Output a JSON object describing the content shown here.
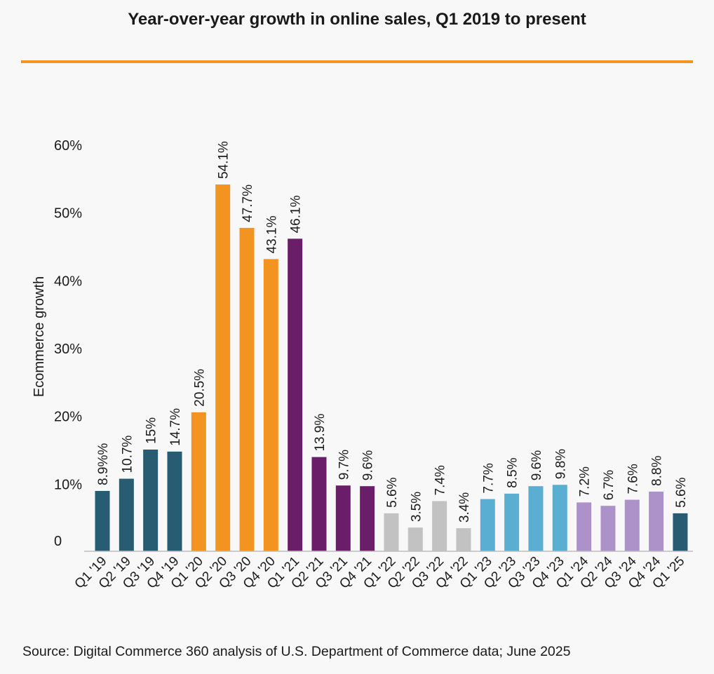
{
  "title": "Year-over-year growth in online sales, Q1 2019 to present",
  "source": "Source: Digital Commerce 360 analysis of U.S. Department of Commerce data; June 2025",
  "colors": {
    "rule": "#f39420",
    "navy": "#275c72",
    "orange": "#f39420",
    "purple": "#6a1e6a",
    "gray": "#c2c2c2",
    "blue": "#5aaed1",
    "lavender": "#ad91c9"
  },
  "chart_data": {
    "type": "bar",
    "title": "Year-over-year growth in online sales, Q1 2019 to present",
    "xlabel": "",
    "ylabel": "Ecommerce growth",
    "ylim": [
      0,
      60
    ],
    "yticks": [
      {
        "value": 0,
        "label": "0"
      },
      {
        "value": 10,
        "label": "10%"
      },
      {
        "value": 20,
        "label": "20%"
      },
      {
        "value": 30,
        "label": "30%"
      },
      {
        "value": 40,
        "label": "40%"
      },
      {
        "value": 50,
        "label": "50%"
      },
      {
        "value": 60,
        "label": "60%"
      }
    ],
    "grid": false,
    "categories": [
      "Q1 '19",
      "Q2 '19",
      "Q3 '19",
      "Q4 '19",
      "Q1 '20",
      "Q2 '20",
      "Q3 '20",
      "Q4 '20",
      "Q1 '21",
      "Q2 '21",
      "Q3 '21",
      "Q4 '21",
      "Q1 '22",
      "Q2 '22",
      "Q3 '22",
      "Q4 '22",
      "Q1 '23",
      "Q2 '23",
      "Q3 '23",
      "Q4 '23",
      "Q1 '24",
      "Q2 '24",
      "Q3 '24",
      "Q4 '24",
      "Q1 '25"
    ],
    "values": [
      8.9,
      10.7,
      15,
      14.7,
      20.5,
      54.1,
      47.7,
      43.1,
      46.1,
      13.9,
      9.7,
      9.6,
      5.6,
      3.5,
      7.4,
      3.4,
      7.7,
      8.5,
      9.6,
      9.8,
      7.2,
      6.7,
      7.6,
      8.8,
      5.6
    ],
    "data_labels": [
      "8.9%%",
      "10.7%",
      "15%",
      "14.7%",
      "20.5%",
      "54.1%",
      "47.7%",
      "43.1%",
      "46.1%",
      "13.9%",
      "9.7%",
      "9.6%",
      "5.6%",
      "3.5%",
      "7.4%",
      "3.4%",
      "7.7%",
      "8.5%",
      "9.6%",
      "9.8%",
      "7.2%",
      "6.7%",
      "7.6%",
      "8.8%",
      "5.6%"
    ],
    "bar_colors": [
      "#275c72",
      "#275c72",
      "#275c72",
      "#275c72",
      "#f39420",
      "#f39420",
      "#f39420",
      "#f39420",
      "#6a1e6a",
      "#6a1e6a",
      "#6a1e6a",
      "#6a1e6a",
      "#c2c2c2",
      "#c2c2c2",
      "#c2c2c2",
      "#c2c2c2",
      "#5aaed1",
      "#5aaed1",
      "#5aaed1",
      "#5aaed1",
      "#ad91c9",
      "#ad91c9",
      "#ad91c9",
      "#ad91c9",
      "#275c72"
    ]
  }
}
